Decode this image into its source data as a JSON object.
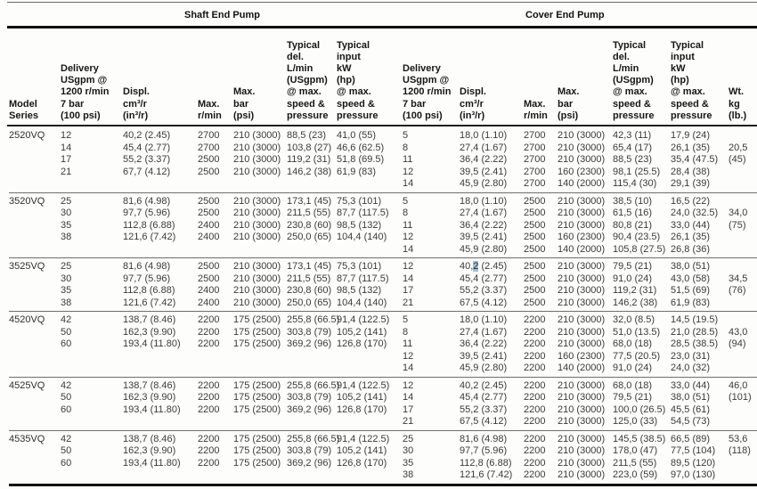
{
  "header": {
    "shaft_title": "Shaft End Pump",
    "cover_title": "Cover End Pump",
    "columns": {
      "model": "Model\nSeries",
      "delivery": "Delivery\nUSgpm @\n1200 r/min\n7 bar\n(100 psi)",
      "displ": "Displ.\ncm³/r\n(in³/r)",
      "rpm": "Max.\nr/min",
      "bar": "Max.\nbar\n(psi)",
      "typ_del": "Typical\ndel.\nL/min\n(USgpm)\n@ max.\nspeed &\npressure",
      "typ_input": "Typical\ninput\nkW\n(hp)\n@ max.\nspeed &\npressure",
      "wt": "Wt.\nkg\n(lb.)"
    }
  },
  "groups": [
    {
      "model": "2520VQ",
      "shaft": {
        "delivery": [
          "12",
          "14",
          "17",
          "21"
        ],
        "displ": [
          "40,2 (2.45)",
          "45,4 (2.77)",
          "55,2 (3.37)",
          "67,7 (4.12)"
        ],
        "rpm": [
          "2700",
          "2700",
          "2500",
          "2500"
        ],
        "bar": [
          "210 (3000)",
          "210 (3000)",
          "210 (3000)",
          "210 (3000)"
        ],
        "typ_del": [
          "88,5 (23)",
          "103,8 (27)",
          "119,2 (31)",
          "146,2 (38)"
        ],
        "typ_input": [
          "41,0 (55)",
          "46,6 (62.5)",
          "51,8 (69.5)",
          "61,9 (83)"
        ]
      },
      "cover": {
        "delivery": [
          "5",
          "8",
          "11",
          "12",
          "14"
        ],
        "displ": [
          "18,0 (1.10)",
          "27,4 (1.67)",
          "36,4 (2.22)",
          "39,5 (2.41)",
          "45,9 (2.80)"
        ],
        "rpm": [
          "2700",
          "2700",
          "2700",
          "2700",
          "2700"
        ],
        "bar": [
          "210 (3000)",
          "210 (3000)",
          "210 (3000)",
          "160 (2300)",
          "140 (2000)"
        ],
        "typ_del": [
          "42,3 (11)",
          "65,4 (17)",
          "88,5 (23)",
          "98,1 (25.5)",
          "115,4 (30)"
        ],
        "typ_input": [
          "17,9 (24)",
          "26,1 (35)",
          "35,4 (47.5)",
          "28,4 (38)",
          "29,1 (39)"
        ]
      },
      "wt": {
        "kg": "20,5",
        "lb": "(45)",
        "row": 1
      }
    },
    {
      "model": "3520VQ",
      "shaft": {
        "delivery": [
          "25",
          "30",
          "35",
          "38"
        ],
        "displ": [
          "81,6 (4.98)",
          "97,7 (5.96)",
          "112,8 (6.88)",
          "121,6 (7.42)"
        ],
        "rpm": [
          "2500",
          "2500",
          "2400",
          "2400"
        ],
        "bar": [
          "210 (3000)",
          "210 (3000)",
          "210 (3000)",
          "210 (3000)"
        ],
        "typ_del": [
          "173,1 (45)",
          "211,5 (55)",
          "230,8 (60)",
          "250,0 (65)"
        ],
        "typ_input": [
          "75,3 (101)",
          "87,7 (117.5)",
          "98,5 (132)",
          "104,4 (140)"
        ]
      },
      "cover": {
        "delivery": [
          "5",
          "8",
          "11",
          "12",
          "14"
        ],
        "displ": [
          "18,0 (1.10)",
          "27,4 (1.67)",
          "36,4 (2.22)",
          "39,5 (2.41)",
          "45,9 (2.80)"
        ],
        "rpm": [
          "2500",
          "2500",
          "2500",
          "2500",
          "2500"
        ],
        "bar": [
          "210 (3000)",
          "210 (3000)",
          "210 (3000)",
          "160 (2300)",
          "140 (2000)"
        ],
        "typ_del": [
          "38,5 (10)",
          "61,5 (16)",
          "80,8 (21)",
          "90,4 (23.5)",
          "105,8 (27.5)"
        ],
        "typ_input": [
          "16,5 (22)",
          "24,0 (32.5)",
          "33,0 (44)",
          "26,1 (35)",
          "26,8 (36)"
        ]
      },
      "wt": {
        "kg": "34,0",
        "lb": "(75)",
        "row": 1
      }
    },
    {
      "model": "3525VQ",
      "shaft": {
        "delivery": [
          "25",
          "30",
          "35",
          "38"
        ],
        "displ": [
          "81,6 (4.98)",
          "97,7 (5.96)",
          "112,8 (6.88)",
          "121,6 (7.42)"
        ],
        "rpm": [
          "2500",
          "2500",
          "2400",
          "2400"
        ],
        "bar": [
          "210 (3000)",
          "210 (3000)",
          "210 (3000)",
          "210 (3000)"
        ],
        "typ_del": [
          "173,1 (45)",
          "211,5 (55)",
          "230,8 (60)",
          "250,0 (65)"
        ],
        "typ_input": [
          "75,3 (101)",
          "87,7 (117.5)",
          "98,5 (132)",
          "104,4 (140)"
        ]
      },
      "cover": {
        "delivery": [
          "12",
          "14",
          "17",
          "21"
        ],
        "displ": [
          {
            "text": "40,2 (2.45)",
            "hl": 3
          },
          "45,4 (2.77)",
          "55,2 (3.37)",
          "67,5 (4.12)"
        ],
        "rpm": [
          "2500",
          "2500",
          "2500",
          "2500"
        ],
        "bar": [
          "210 (3000)",
          "210 (3000)",
          "210 (3000)",
          "210 (3000)"
        ],
        "typ_del": [
          "79,5 (21)",
          "91,0 (24)",
          "119,2 (31)",
          "146,2 (38)"
        ],
        "typ_input": [
          "38,0 (51)",
          "43,0 (58)",
          "51,5 (69)",
          "61,9 (83)"
        ]
      },
      "wt": {
        "kg": "34,5",
        "lb": "(76)",
        "row": 1
      }
    },
    {
      "model": "4520VQ",
      "shaft": {
        "delivery": [
          "42",
          "50",
          "60"
        ],
        "displ": [
          "138,7 (8.46)",
          "162,3 (9.90)",
          "193,4 (11.80)"
        ],
        "rpm": [
          "2200",
          "2200",
          "2200"
        ],
        "bar": [
          "175 (2500)",
          "175 (2500)",
          "175 (2500)"
        ],
        "typ_del": [
          "255,8 (66.5)",
          "303,8 (79)",
          "369,2 (96)"
        ],
        "typ_input": [
          "91,4 (122.5)",
          "105,2 (141)",
          "126,8 (170)"
        ]
      },
      "cover": {
        "delivery": [
          "5",
          "8",
          "11",
          "12",
          "14"
        ],
        "displ": [
          "18,0 (1.10)",
          "27,4 (1.67)",
          "36,4 (2.22)",
          "39,5 (2.41)",
          "45,9 (2.80)"
        ],
        "rpm": [
          "2200",
          "2200",
          "2200",
          "2200",
          "2200"
        ],
        "bar": [
          "210 (3000)",
          "210 (3000)",
          "210 (3000)",
          "160 (2300)",
          "140 (2000)"
        ],
        "typ_del": [
          "32,0 (8.5)",
          "51,0 (13.5)",
          "68,0 (18)",
          "77,5 (20.5)",
          "91,0 (24)"
        ],
        "typ_input": [
          "14,5 (19.5)",
          "21,0 (28.5)",
          "28,5 (38.5)",
          "23,0 (31)",
          "24,0 (32)"
        ]
      },
      "wt": {
        "kg": "43,0",
        "lb": "(94)",
        "row": 1
      }
    },
    {
      "model": "4525VQ",
      "shaft": {
        "delivery": [
          "42",
          "50",
          "60"
        ],
        "displ": [
          "138,7 (8.46)",
          "162,3 (9.90)",
          "193,4 (11.80)"
        ],
        "rpm": [
          "2200",
          "2200",
          "2200"
        ],
        "bar": [
          "175 (2500)",
          "175 (2500)",
          "175 (2500)"
        ],
        "typ_del": [
          "255,8 (66.5)",
          "303,8 (79)",
          "369,2 (96)"
        ],
        "typ_input": [
          "91,4 (122.5)",
          "105,2 (141)",
          "126,8 (170)"
        ]
      },
      "cover": {
        "delivery": [
          "12",
          "14",
          "17",
          "21"
        ],
        "displ": [
          "40,2 (2.45)",
          "45,4 (2.77)",
          "55,2 (3.37)",
          "67,5 (4.12)"
        ],
        "rpm": [
          "2200",
          "2200",
          "2200",
          "2200"
        ],
        "bar": [
          "210 (3000)",
          "210 (3000)",
          "210 (3000)",
          "210 (3000)"
        ],
        "typ_del": [
          "68,0 (18)",
          "79,5 (21)",
          "100,0 (26.5)",
          "125,0 (33)"
        ],
        "typ_input": [
          "33,0 (44)",
          "38,0 (51)",
          "45,5 (61)",
          "54,5 (73)"
        ]
      },
      "wt": {
        "kg": "46,0",
        "lb": "(101)",
        "row": 0
      }
    },
    {
      "model": "4535VQ",
      "shaft": {
        "delivery": [
          "42",
          "50",
          "60"
        ],
        "displ": [
          "138,7 (8.46)",
          "162,3 (9.90)",
          "193,4 (11.80)"
        ],
        "rpm": [
          "2200",
          "2200",
          "2200"
        ],
        "bar": [
          "175 (2500)",
          "175 (2500)",
          "175 (2500)"
        ],
        "typ_del": [
          "255,8 (66.5)",
          "303,8 (79)",
          "369,2 (96)"
        ],
        "typ_input": [
          "91,4 (122.5)",
          "105,2 (141)",
          "126,8 (170)"
        ]
      },
      "cover": {
        "delivery": [
          "25",
          "30",
          "35",
          "38"
        ],
        "displ": [
          "81,6 (4.98)",
          "97,7 (5.96)",
          "112,8 (6.88)",
          "121,6 (7.42)"
        ],
        "rpm": [
          "2200",
          "2200",
          "2200",
          "2200"
        ],
        "bar": [
          "210 (3000)",
          "210 (3000)",
          "210 (3000)",
          "210 (3000)"
        ],
        "typ_del": [
          "145,5 (38.5)",
          "178,0 (47)",
          "211,5 (55)",
          "223,0 (59)"
        ],
        "typ_input": [
          "66,5 (89)",
          "77,5 (104)",
          "89,5 (120)",
          "97,0 (130)"
        ]
      },
      "wt": {
        "kg": "53,6",
        "lb": "(118)",
        "row": 0
      }
    }
  ]
}
